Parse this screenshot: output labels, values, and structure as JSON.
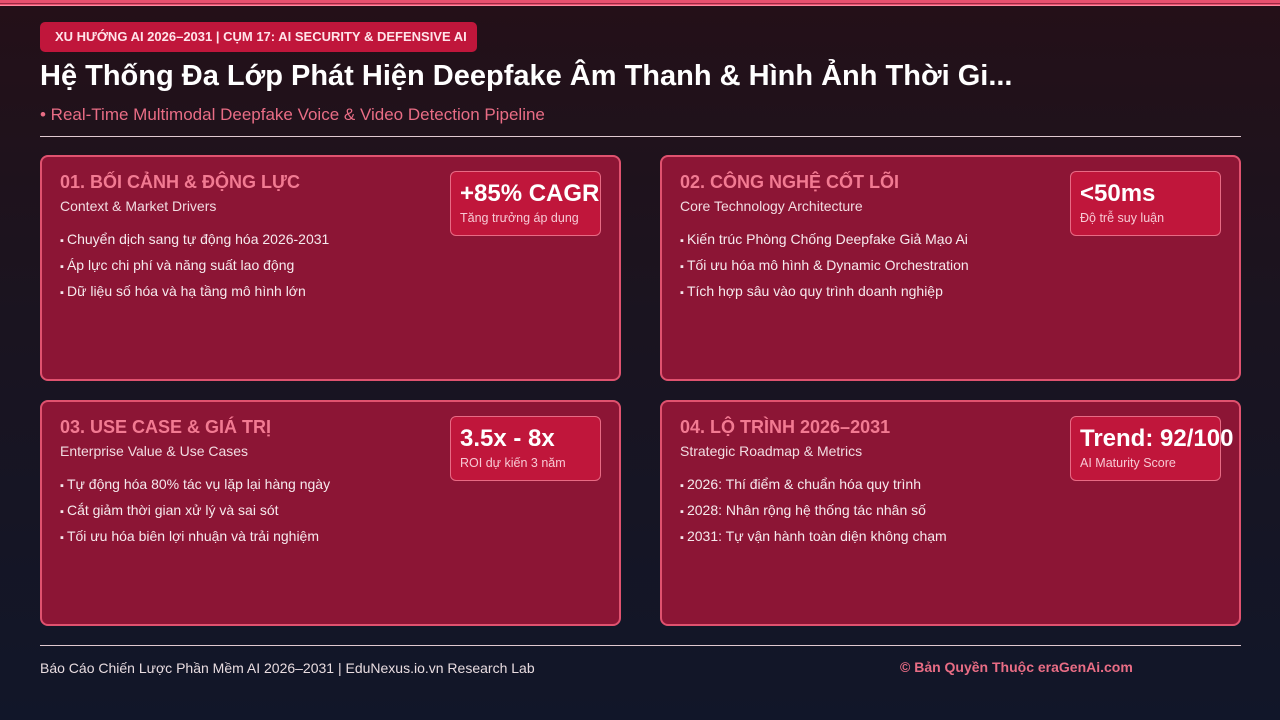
{
  "header": {
    "tag": "XU HƯỚNG AI 2026–2031 | CỤM 17: AI SECURITY & DEFENSIVE AI",
    "title": "Hệ Thống Đa Lớp Phát Hiện Deepfake Âm Thanh & Hình Ảnh Thời Gi...",
    "subtitle": "• Real-Time Multimodal Deepfake Voice & Video Detection Pipeline"
  },
  "cards": [
    {
      "title": "01. BỐI CẢNH & ĐỘNG LỰC",
      "subtitle": "Context & Market Drivers",
      "items": [
        "Chuyển dịch sang tự động hóa 2026-2031",
        "Áp lực chi phí và năng suất lao động",
        "Dữ liệu số hóa và hạ tầng mô hình lớn"
      ],
      "metric": {
        "value": "+85% CAGR",
        "label": "Tăng trưởng áp dụng"
      }
    },
    {
      "title": "02. CÔNG NGHỆ CỐT LÕI",
      "subtitle": "Core Technology Architecture",
      "items": [
        "Kiến trúc Phòng Chống Deepfake Giả Mạo Ai",
        "Tối ưu hóa mô hình & Dynamic Orchestration",
        "Tích hợp sâu vào quy trình doanh nghiệp"
      ],
      "metric": {
        "value": "<50ms",
        "label": "Độ trễ suy luận"
      }
    },
    {
      "title": "03. USE CASE & GIÁ TRỊ",
      "subtitle": "Enterprise Value & Use Cases",
      "items": [
        "Tự động hóa 80% tác vụ lặp lại hàng ngày",
        "Cắt giảm thời gian xử lý và sai sót",
        "Tối ưu hóa biên lợi nhuận và trải nghiệm"
      ],
      "metric": {
        "value": "3.5x - 8x",
        "label": "ROI dự kiến 3 năm"
      }
    },
    {
      "title": "04. LỘ TRÌNH 2026–2031",
      "subtitle": "Strategic Roadmap & Metrics",
      "items": [
        "2026: Thí điểm & chuẩn hóa quy trình",
        "2028: Nhân rộng hệ thống tác nhân số",
        "2031: Tự vận hành toàn diện không chạm"
      ],
      "metric": {
        "value": "Trend: 92/100",
        "label": "AI Maturity Score"
      }
    }
  ],
  "footer": {
    "left": "Báo Cáo Chiến Lược Phần Mềm AI 2026–2031 | EduNexus.io.vn Research Lab",
    "right": "© Bản Quyền Thuộc eraGenAi.com"
  },
  "colors": {
    "accent": "#c0163b",
    "card_bg": "#8c1535",
    "card_border": "#e0526f",
    "heading": "#f27a92"
  }
}
